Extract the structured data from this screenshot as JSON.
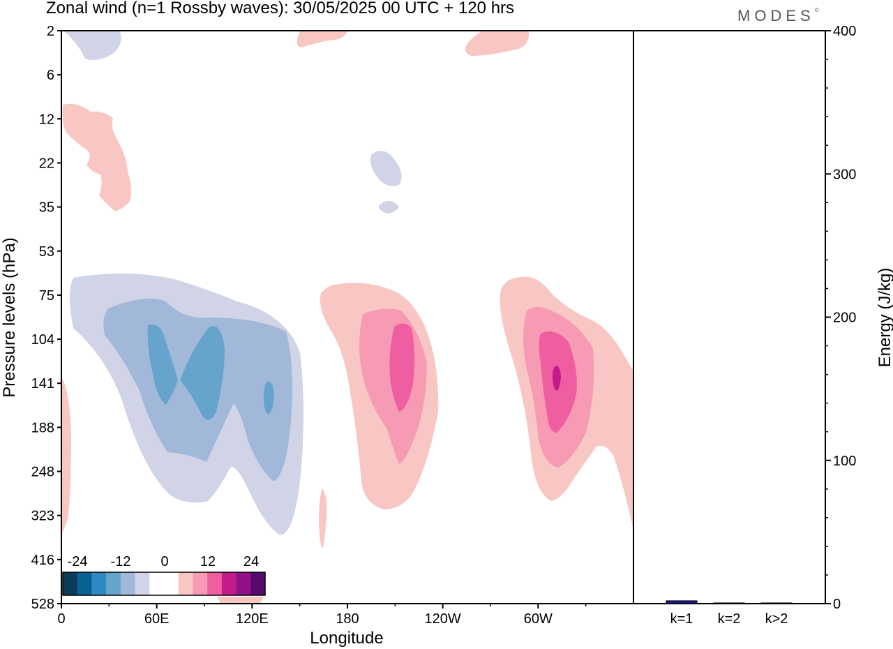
{
  "title": "Zonal wind (n=1 Rossby waves):  30/05/2025  00 UTC  + 120 hrs",
  "brand": "MODES",
  "brand_mark": "©",
  "chart_data": [
    {
      "type": "heatmap",
      "xlabel": "Longitude",
      "ylabel": "Pressure levels (hPa)",
      "x_ticks": [
        "0",
        "60E",
        "120E",
        "180",
        "120W",
        "60W"
      ],
      "y_ticks": [
        "2",
        "6",
        "12",
        "22",
        "35",
        "53",
        "75",
        "104",
        "141",
        "188",
        "248",
        "323",
        "416",
        "528"
      ],
      "colorbar": {
        "labels": [
          "-24",
          "-12",
          "0",
          "12",
          "24"
        ],
        "colors": [
          "#0d3c5a",
          "#0a6294",
          "#2f89c3",
          "#66a4cc",
          "#a2b8d9",
          "#d0d4e6",
          "#ffffff",
          "#ffffff",
          "#f9c7c3",
          "#f79bb5",
          "#ee5ea0",
          "#c31a8c",
          "#92118a",
          "#560a6e"
        ]
      },
      "features": [
        {
          "sign": "negative",
          "region": "60E–130E",
          "levels": "75–323 hPa",
          "min_approx": -12
        },
        {
          "sign": "positive",
          "region": "170E–150W",
          "levels": "53–323 hPa",
          "max_approx": 12
        },
        {
          "sign": "positive",
          "region": "80W–0",
          "levels": "53–323 hPa",
          "max_approx": 16
        }
      ]
    },
    {
      "type": "bar",
      "categories": [
        "k=1",
        "k=2",
        "k>2"
      ],
      "values": [
        2,
        0.5,
        0.5
      ],
      "ylabel": "Energy (J/kg)",
      "ylim": [
        0,
        400
      ],
      "y_ticks": [
        "0",
        "100",
        "200",
        "300",
        "400"
      ],
      "bar_color": "#1a1a8c"
    }
  ]
}
